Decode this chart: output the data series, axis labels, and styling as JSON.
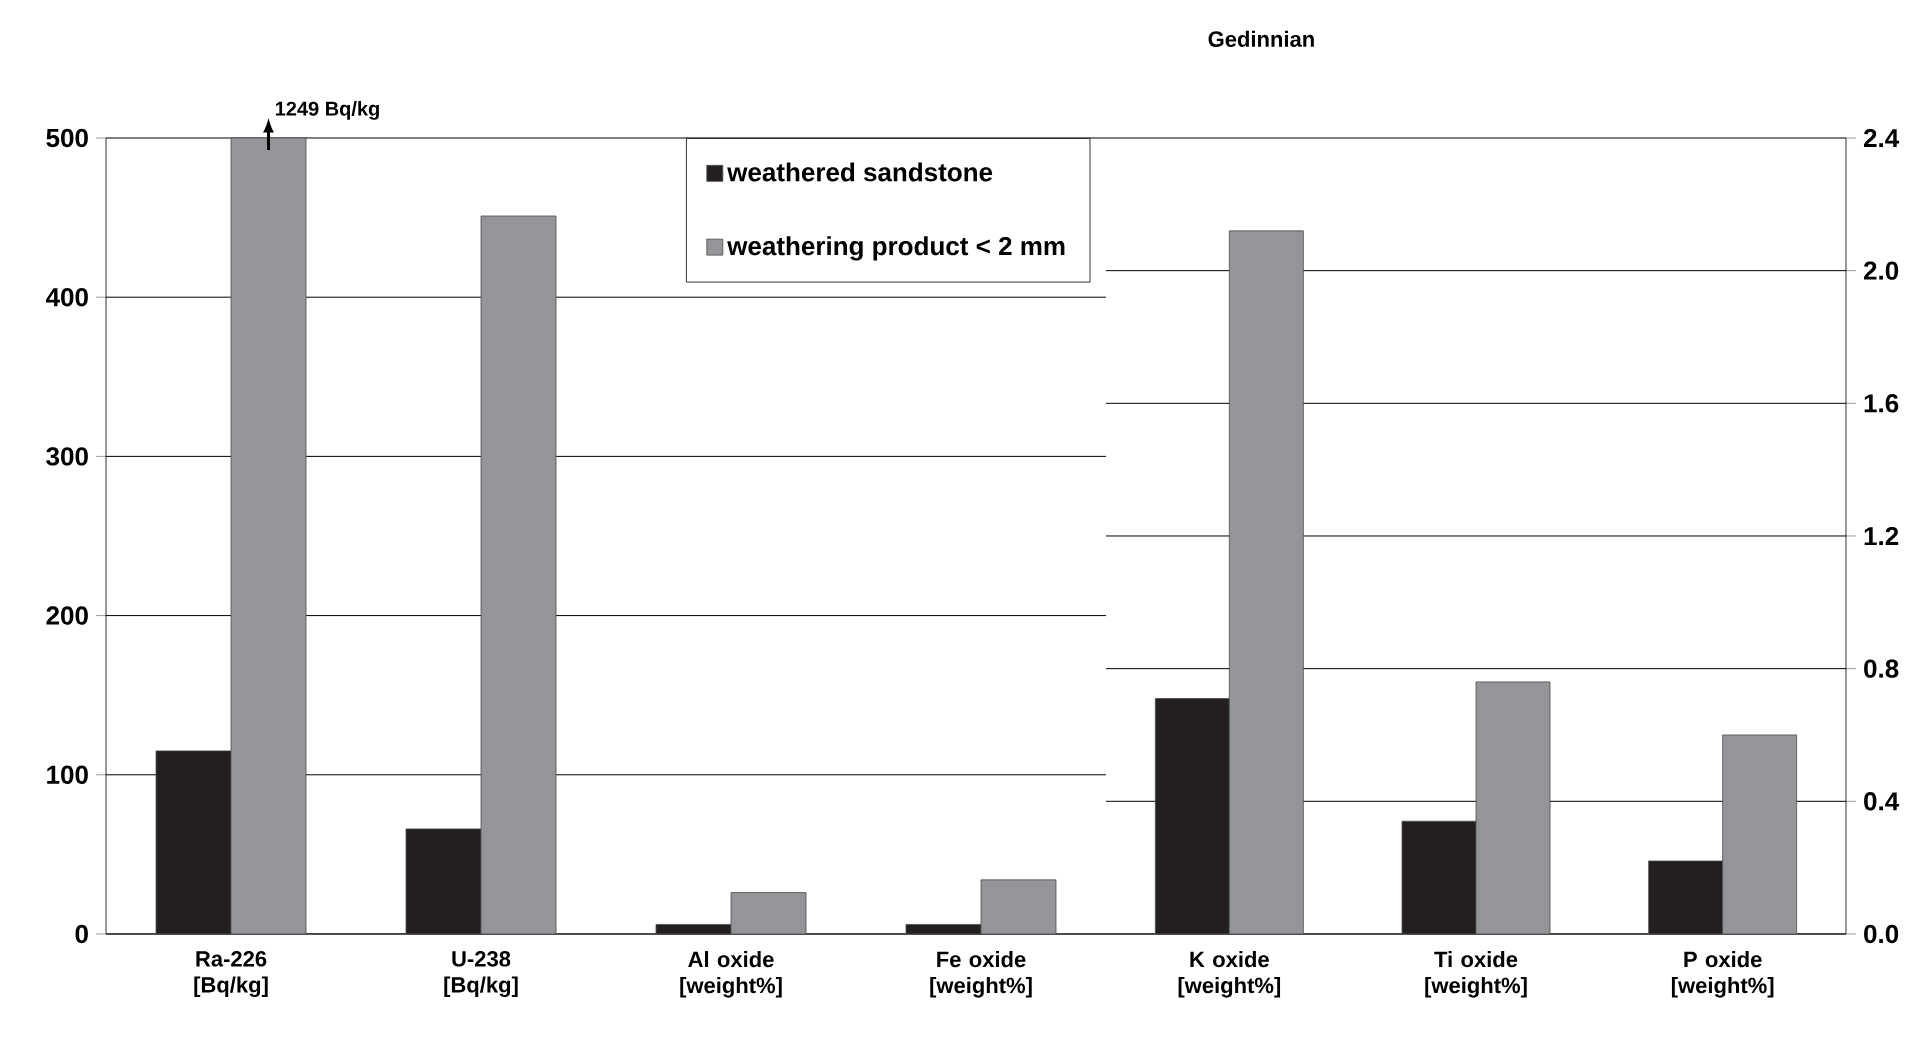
{
  "chart_data": [
    {
      "type": "bar",
      "categories": [
        "Ra-226 [Bq/kg]",
        "U-238 [Bq/kg]",
        "Al oxide [weight%]",
        "Fe oxide [weight%]"
      ],
      "series": [
        {
          "name": "weathered sandstone",
          "color": "#231f20",
          "values": [
            115,
            66,
            6,
            6
          ]
        },
        {
          "name": "weathering product < 2 mm",
          "color": "#939598",
          "values": [
            500,
            451,
            26,
            34
          ]
        }
      ],
      "ylim": [
        0,
        500
      ],
      "yticks": [
        0,
        100,
        200,
        300,
        400,
        500
      ],
      "grid": "y",
      "legend": "top right",
      "annotations": [
        {
          "text": "1249 Bq/kg",
          "x": "Ra-226 [Bq/kg]",
          "y": 500
        }
      ]
    },
    {
      "type": "bar",
      "title": "Gedinnian",
      "categories": [
        "K oxide [weight%]",
        "Ti oxide [weight%]",
        "P oxide [weight%]"
      ],
      "series": [
        {
          "color": "#231f20",
          "values": [
            0.71,
            0.34,
            0.22
          ],
          "axis": "y2"
        },
        {
          "color": "#939598",
          "values": [
            2.12,
            0.76,
            0.6
          ],
          "axis": "y2"
        }
      ],
      "y2lim": [
        0,
        2.4
      ],
      "y2ticks": [
        {
          "value": 0,
          "label": "0.0"
        },
        {
          "value": 0.4,
          "label": "0.4"
        },
        {
          "value": 0.8,
          "label": "0.8"
        },
        {
          "value": 1.2,
          "label": "1.2"
        },
        {
          "value": 1.6,
          "label": "1.6"
        },
        {
          "value": 2.0,
          "label": "2.0"
        },
        {
          "value": 2.4,
          "label": "2.4"
        }
      ],
      "grid": "y"
    }
  ]
}
